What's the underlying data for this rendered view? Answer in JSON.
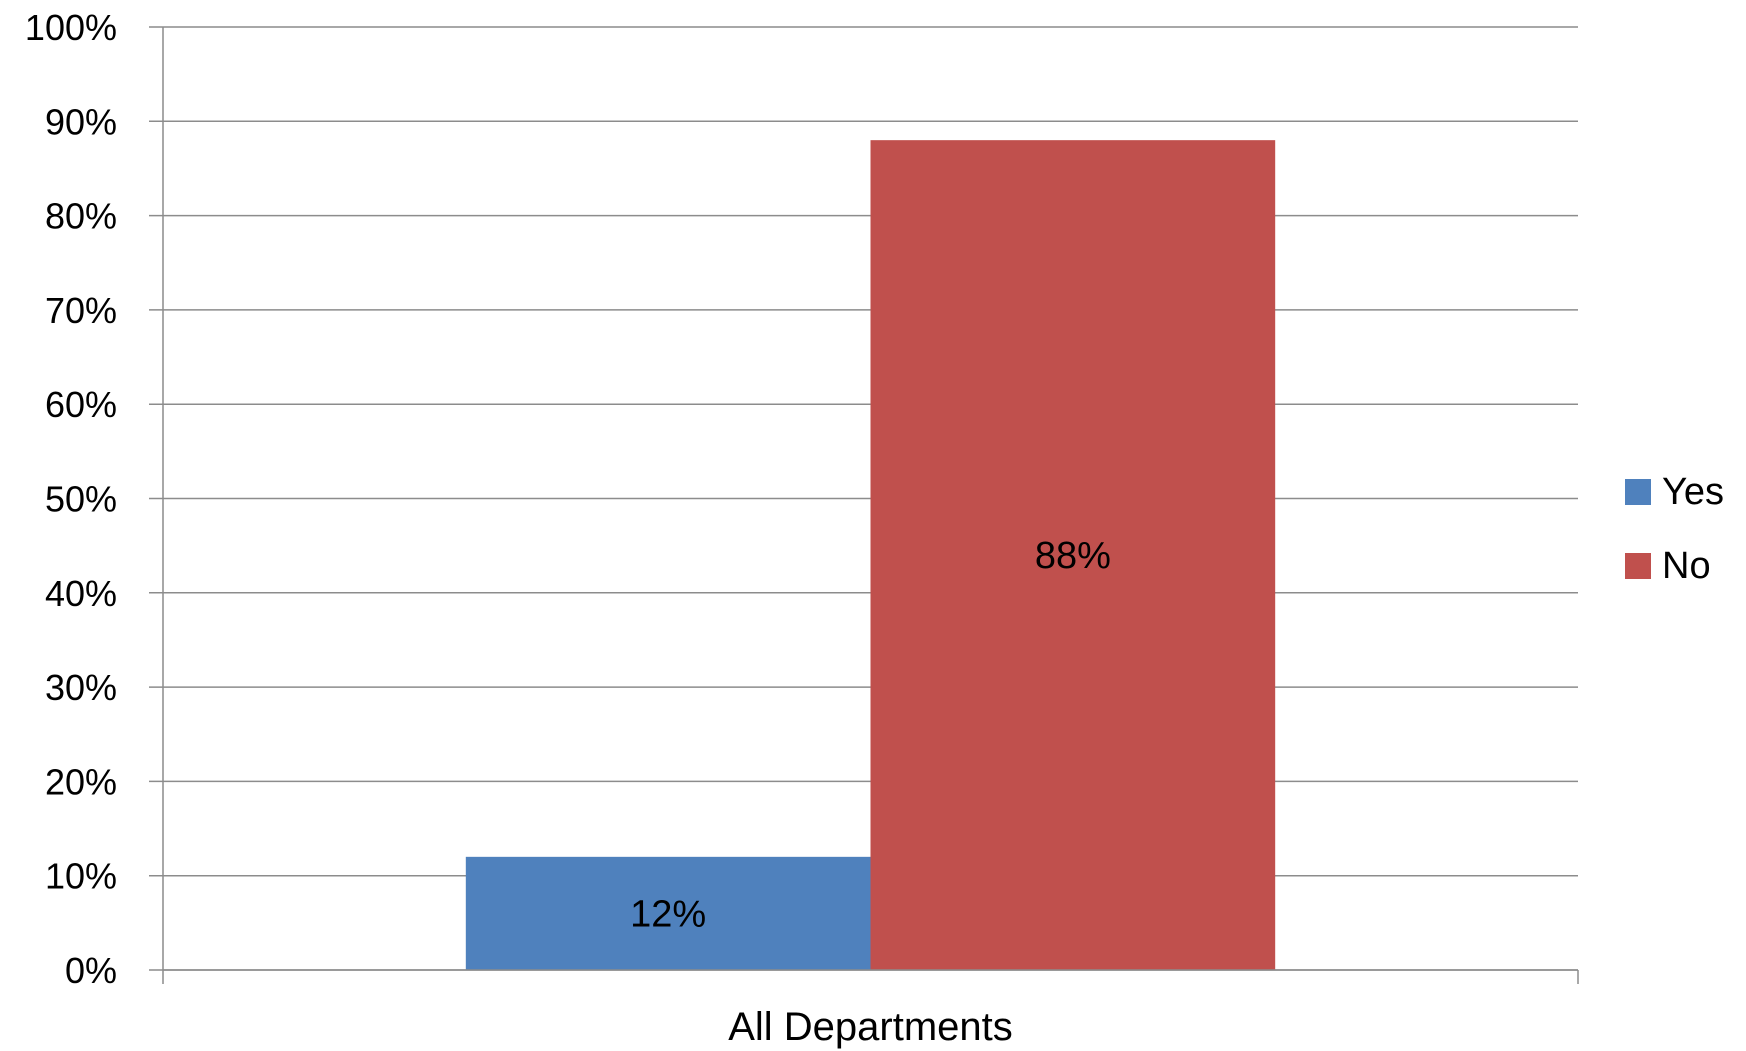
{
  "chart_data": {
    "type": "bar",
    "categories": [
      "All Departments"
    ],
    "series": [
      {
        "name": "Yes",
        "values": [
          12
        ],
        "color": "#4F81BD",
        "data_labels": [
          "12%"
        ]
      },
      {
        "name": "No",
        "values": [
          88
        ],
        "color": "#C0504D",
        "data_labels": [
          "88%"
        ]
      }
    ],
    "title": "",
    "xlabel": "",
    "ylabel": "",
    "ylim": [
      0,
      100
    ],
    "y_ticks": [
      "0%",
      "10%",
      "20%",
      "30%",
      "40%",
      "50%",
      "60%",
      "70%",
      "80%",
      "90%",
      "100%"
    ],
    "grid": true,
    "legend_position": "right"
  }
}
